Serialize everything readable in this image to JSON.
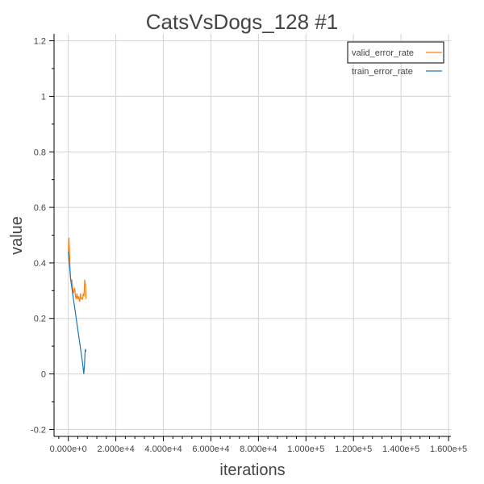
{
  "chart_data": {
    "type": "line",
    "title": "CatsVsDogs_128 #1",
    "xlabel": "iterations",
    "ylabel": "value",
    "xlim": [
      -6000,
      161000
    ],
    "ylim": [
      -0.225,
      1.225
    ],
    "xticks": [
      0,
      20000,
      40000,
      60000,
      80000,
      100000,
      120000,
      140000,
      160000
    ],
    "xtick_labels": [
      "0.000e+0",
      "2.000e+4",
      "4.000e+4",
      "6.000e+4",
      "8.000e+4",
      "1.000e+5",
      "1.200e+5",
      "1.400e+5",
      "1.600e+5"
    ],
    "yticks": [
      -0.2,
      0,
      0.2,
      0.4,
      0.6,
      0.8,
      1.0,
      1.2
    ],
    "ytick_labels": [
      "-0.2",
      "0",
      "0.2",
      "0.4",
      "0.6",
      "0.8",
      "1",
      "1.2"
    ],
    "grid": true,
    "legend_position": "top-right",
    "series": [
      {
        "name": "valid_error_rate",
        "color": "#ff7f0e",
        "x": [
          0,
          300,
          600,
          900,
          1200,
          1500,
          1800,
          2100,
          2400,
          2700,
          3000,
          3300,
          3600,
          3900,
          4200,
          4500,
          4800,
          5100,
          5400,
          5700,
          6000,
          6300,
          6600,
          6900,
          7200,
          7500
        ],
        "y": [
          0.44,
          0.49,
          0.41,
          0.35,
          0.33,
          0.34,
          0.31,
          0.29,
          0.3,
          0.31,
          0.28,
          0.27,
          0.29,
          0.27,
          0.28,
          0.27,
          0.26,
          0.29,
          0.27,
          0.27,
          0.27,
          0.29,
          0.28,
          0.34,
          0.32,
          0.27
        ]
      },
      {
        "name": "train_error_rate",
        "color": "#1f77b4",
        "x": [
          0,
          200,
          400,
          700,
          1000,
          1500,
          2000,
          2500,
          3000,
          3500,
          4000,
          4500,
          5000,
          5500,
          6000,
          6500,
          6800,
          7000,
          7200,
          7400
        ],
        "y": [
          0.44,
          0.42,
          0.4,
          0.37,
          0.34,
          0.31,
          0.28,
          0.25,
          0.22,
          0.19,
          0.16,
          0.13,
          0.1,
          0.07,
          0.04,
          0.0,
          0.03,
          0.07,
          0.09,
          0.08
        ]
      }
    ]
  }
}
